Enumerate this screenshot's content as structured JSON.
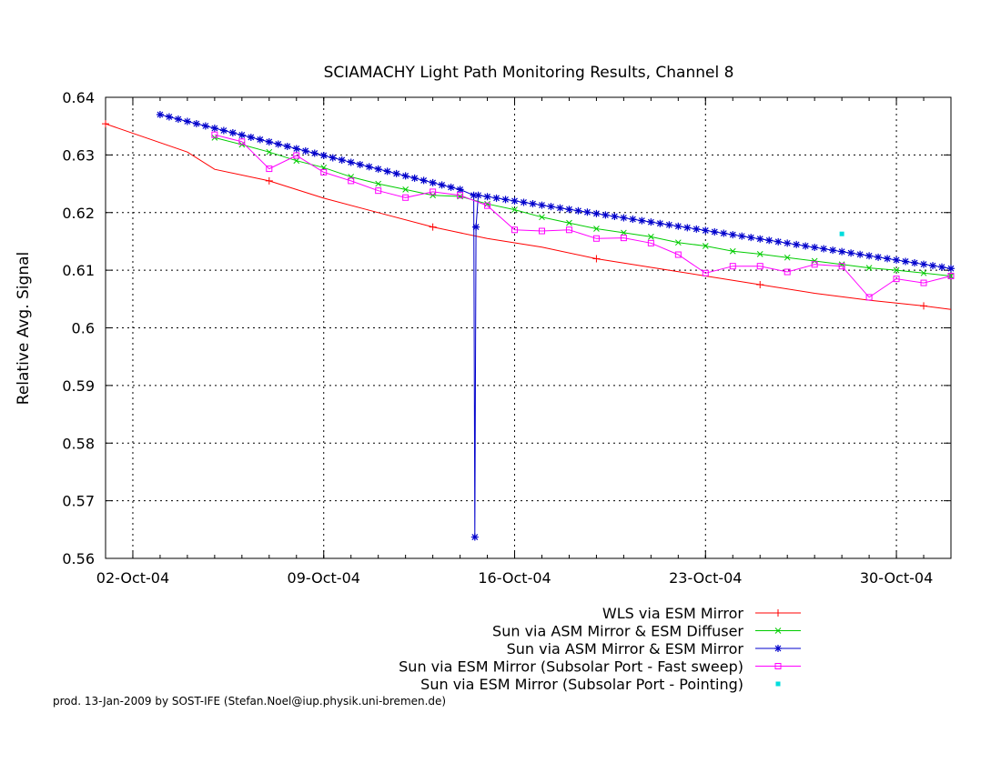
{
  "chart_data": {
    "type": "line",
    "title": "SCIAMACHY Light Path Monitoring Results, Channel 8",
    "xlabel": "",
    "ylabel": "Relative Avg. Signal",
    "x_unit": "date",
    "xlim": [
      "2004-10-01",
      "2004-11-01"
    ],
    "ylim": [
      0.56,
      0.64
    ],
    "grid": true,
    "legend_position": "bottom",
    "x_tick_labels": [
      {
        "date": "2004-10-02",
        "label": "02-Oct-04"
      },
      {
        "date": "2004-10-09",
        "label": "09-Oct-04"
      },
      {
        "date": "2004-10-16",
        "label": "16-Oct-04"
      },
      {
        "date": "2004-10-23",
        "label": "23-Oct-04"
      },
      {
        "date": "2004-10-30",
        "label": "30-Oct-04"
      }
    ],
    "y_tick_labels": [
      "0.56",
      "0.57",
      "0.58",
      "0.59",
      "0.6",
      "0.61",
      "0.62",
      "0.63",
      "0.64"
    ],
    "series": [
      {
        "name": "WLS via ESM Mirror",
        "color": "#ff0000",
        "marker": "plus",
        "marker_every": 3,
        "points": [
          [
            "2004-10-01",
            0.6354
          ],
          [
            "2004-10-04",
            0.6305
          ],
          [
            "2004-10-05",
            0.6275
          ],
          [
            "2004-10-07",
            0.6255
          ],
          [
            "2004-10-09",
            0.6225
          ],
          [
            "2004-10-11",
            0.62
          ],
          [
            "2004-10-13",
            0.6175
          ],
          [
            "2004-10-15",
            0.6155
          ],
          [
            "2004-10-17",
            0.614
          ],
          [
            "2004-10-19",
            0.612
          ],
          [
            "2004-10-21",
            0.6105
          ],
          [
            "2004-10-23",
            0.609
          ],
          [
            "2004-10-25",
            0.6075
          ],
          [
            "2004-10-27",
            0.606
          ],
          [
            "2004-10-29",
            0.6048
          ],
          [
            "2004-10-31",
            0.6038
          ],
          [
            "2004-11-01",
            0.6032
          ]
        ]
      },
      {
        "name": "Sun via ASM Mirror & ESM Diffuser",
        "color": "#00cc00",
        "marker": "cross",
        "marker_every": 1,
        "points": [
          [
            "2004-10-05",
            0.633
          ],
          [
            "2004-10-06",
            0.6318
          ],
          [
            "2004-10-07",
            0.6305
          ],
          [
            "2004-10-08",
            0.629
          ],
          [
            "2004-10-09",
            0.6278
          ],
          [
            "2004-10-10",
            0.6262
          ],
          [
            "2004-10-11",
            0.625
          ],
          [
            "2004-10-12",
            0.624
          ],
          [
            "2004-10-13",
            0.623
          ],
          [
            "2004-10-14",
            0.6228
          ],
          [
            "2004-10-15",
            0.6215
          ],
          [
            "2004-10-16",
            0.6205
          ],
          [
            "2004-10-17",
            0.6192
          ],
          [
            "2004-10-18",
            0.6182
          ],
          [
            "2004-10-19",
            0.6172
          ],
          [
            "2004-10-20",
            0.6165
          ],
          [
            "2004-10-21",
            0.6158
          ],
          [
            "2004-10-22",
            0.6148
          ],
          [
            "2004-10-23",
            0.6142
          ],
          [
            "2004-10-24",
            0.6133
          ],
          [
            "2004-10-25",
            0.6128
          ],
          [
            "2004-10-26",
            0.6122
          ],
          [
            "2004-10-27",
            0.6116
          ],
          [
            "2004-10-28",
            0.611
          ],
          [
            "2004-10-29",
            0.6104
          ],
          [
            "2004-10-30",
            0.61
          ],
          [
            "2004-10-31",
            0.6095
          ],
          [
            "2004-11-01",
            0.609
          ]
        ]
      },
      {
        "name": "Sun via ASM Mirror & ESM Mirror",
        "color": "#0000cc",
        "marker": "star",
        "marker_every": 1,
        "drawn_as": "dense daily samples, slope endpoints plus one dropout",
        "points": [
          [
            "2004-10-03",
            0.637
          ],
          [
            "2004-10-14",
            0.624
          ],
          [
            "2004-10-14 12:00",
            0.623
          ],
          [
            "2004-10-14 13:00",
            0.5637
          ],
          [
            "2004-10-14 14:00",
            0.6175
          ],
          [
            "2004-10-14 16:00",
            0.623
          ],
          [
            "2004-11-01",
            0.6103
          ]
        ]
      },
      {
        "name": "Sun via ESM Mirror (Subsolar Port - Fast sweep)",
        "color": "#ff00ff",
        "marker": "square",
        "marker_every": 1,
        "points": [
          [
            "2004-10-05",
            0.6335
          ],
          [
            "2004-10-06",
            0.6323
          ],
          [
            "2004-10-07",
            0.6276
          ],
          [
            "2004-10-08",
            0.6299
          ],
          [
            "2004-10-09",
            0.627
          ],
          [
            "2004-10-10",
            0.6255
          ],
          [
            "2004-10-11",
            0.6238
          ],
          [
            "2004-10-12",
            0.6226
          ],
          [
            "2004-10-13",
            0.6236
          ],
          [
            "2004-10-14",
            0.623
          ],
          [
            "2004-10-15",
            0.6212
          ],
          [
            "2004-10-16",
            0.617
          ],
          [
            "2004-10-17",
            0.6168
          ],
          [
            "2004-10-18",
            0.617
          ],
          [
            "2004-10-19",
            0.6155
          ],
          [
            "2004-10-20",
            0.6156
          ],
          [
            "2004-10-21",
            0.6147
          ],
          [
            "2004-10-22",
            0.6127
          ],
          [
            "2004-10-23",
            0.6095
          ],
          [
            "2004-10-24",
            0.6107
          ],
          [
            "2004-10-25",
            0.6107
          ],
          [
            "2004-10-26",
            0.6097
          ],
          [
            "2004-10-27",
            0.611
          ],
          [
            "2004-10-28",
            0.6107
          ],
          [
            "2004-10-29",
            0.6053
          ],
          [
            "2004-10-30",
            0.6085
          ],
          [
            "2004-10-31",
            0.6078
          ],
          [
            "2004-11-01",
            0.609
          ]
        ]
      },
      {
        "name": "Sun via ESM Mirror (Subsolar Port - Pointing)",
        "color": "#00dddd",
        "marker": "dot",
        "marker_every": 1,
        "points": [
          [
            "2004-10-28",
            0.6163
          ]
        ]
      }
    ]
  },
  "footer_text": "prod. 13-Jan-2009 by SOST-IFE (Stefan.Noel@iup.physik.uni-bremen.de)"
}
